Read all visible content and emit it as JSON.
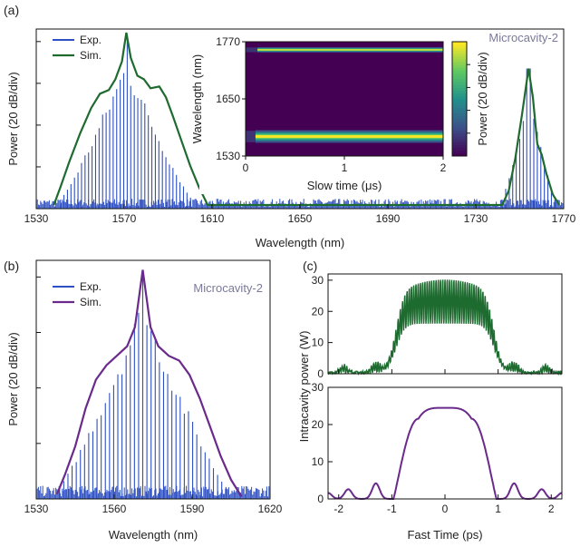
{
  "chart_data": [
    {
      "id": "a",
      "type": "line",
      "panel_label": "(a)",
      "note": "Microcavity-2",
      "xlabel": "Wavelength (nm)",
      "ylabel": "Power (20 dB/div)",
      "xlim": [
        1530,
        1770
      ],
      "xticks": [
        "1530",
        "1570",
        "1610",
        "1650",
        "1690",
        "1730",
        "1770"
      ],
      "legend": [
        "Exp.",
        "Sim."
      ],
      "colors": {
        "exp": "#2d4fc2",
        "sim": "#1e6b30"
      },
      "lobes": [
        {
          "center": 1571,
          "half_width": 30,
          "spacing": 1.6,
          "base": 0.05,
          "exp_peak": 0.85
        },
        {
          "center": 1754,
          "half_width": 12,
          "spacing": 1.6,
          "base": 0.05,
          "exp_peak": 0.68
        }
      ],
      "sim_points": [
        [
          1538,
          0.02
        ],
        [
          1541,
          0.12
        ],
        [
          1545,
          0.26
        ],
        [
          1550,
          0.42
        ],
        [
          1555,
          0.56
        ],
        [
          1559,
          0.64
        ],
        [
          1563,
          0.66
        ],
        [
          1566,
          0.72
        ],
        [
          1569,
          0.82
        ],
        [
          1571,
          0.98
        ],
        [
          1573,
          0.84
        ],
        [
          1576,
          0.74
        ],
        [
          1579,
          0.72
        ],
        [
          1582,
          0.67
        ],
        [
          1586,
          0.68
        ],
        [
          1589,
          0.62
        ],
        [
          1592,
          0.52
        ],
        [
          1596,
          0.38
        ],
        [
          1600,
          0.24
        ],
        [
          1604,
          0.12
        ],
        [
          1608,
          0.02
        ],
        [
          1742,
          0.02
        ],
        [
          1745,
          0.1
        ],
        [
          1748,
          0.28
        ],
        [
          1751,
          0.52
        ],
        [
          1754,
          0.78
        ],
        [
          1756,
          0.62
        ],
        [
          1758,
          0.36
        ],
        [
          1760,
          0.3
        ],
        [
          1762,
          0.2
        ],
        [
          1765,
          0.08
        ],
        [
          1768,
          0.02
        ]
      ]
    },
    {
      "id": "a-inset",
      "type": "heatmap",
      "xlabel": "Slow time (μs)",
      "ylabel": "Wavelength (nm)",
      "colorbar_label": "Power (20 dB/div)",
      "xlim": [
        0,
        2
      ],
      "ylim": [
        1530,
        1770
      ],
      "xticks": [
        "0",
        "1",
        "2"
      ],
      "yticks": [
        "1530",
        "1650",
        "1770"
      ],
      "bands": [
        {
          "center": 1571,
          "width": 12,
          "start": 0.1
        },
        {
          "center": 1753,
          "width": 5,
          "start": 0.12
        }
      ],
      "colormap": [
        "#440154",
        "#3b528b",
        "#21918c",
        "#5ec962",
        "#fde725"
      ]
    },
    {
      "id": "b",
      "type": "line",
      "panel_label": "(b)",
      "note": "Microcavity-2",
      "xlabel": "Wavelength (nm)",
      "ylabel": "Power (20 dB/div)",
      "xlim": [
        1530,
        1620
      ],
      "xticks": [
        "1530",
        "1560",
        "1590",
        "1620"
      ],
      "legend": [
        "Exp.",
        "Sim."
      ],
      "colors": {
        "exp": "#2d4fc2",
        "sim": "#6a2a8c"
      },
      "lobes": [
        {
          "center": 1571,
          "half_width": 32,
          "spacing": 1.6,
          "base": 0.05,
          "exp_peak": 0.85
        }
      ],
      "sim_points": [
        [
          1538,
          0.02
        ],
        [
          1541,
          0.1
        ],
        [
          1545,
          0.22
        ],
        [
          1549,
          0.38
        ],
        [
          1553,
          0.5
        ],
        [
          1557,
          0.56
        ],
        [
          1561,
          0.6
        ],
        [
          1565,
          0.64
        ],
        [
          1568,
          0.72
        ],
        [
          1571,
          0.96
        ],
        [
          1574,
          0.72
        ],
        [
          1577,
          0.64
        ],
        [
          1581,
          0.6
        ],
        [
          1585,
          0.58
        ],
        [
          1589,
          0.52
        ],
        [
          1593,
          0.42
        ],
        [
          1597,
          0.3
        ],
        [
          1601,
          0.18
        ],
        [
          1605,
          0.08
        ],
        [
          1609,
          0.01
        ]
      ]
    },
    {
      "id": "c-top",
      "type": "line",
      "panel_label": "(c)",
      "ylabel": "Intracavity power (W)",
      "xlim": [
        -2.2,
        2.2
      ],
      "ylim": [
        0,
        32
      ],
      "yticks": [
        "0",
        "10",
        "20",
        "30"
      ],
      "color": "#1e6b30",
      "pulse": {
        "center": 0,
        "half_width": 0.92,
        "upper": 30.5,
        "lower": 16,
        "ripple_period": 0.042
      }
    },
    {
      "id": "c-bottom",
      "type": "line",
      "xlabel": "Fast Time (ps)",
      "xlim": [
        -2.2,
        2.2
      ],
      "ylim": [
        0,
        30
      ],
      "xticks": [
        "-2",
        "-1",
        "0",
        "1",
        "2"
      ],
      "yticks": [
        "0",
        "10",
        "20",
        "30"
      ],
      "color": "#6a2a8c",
      "pulse": {
        "center": 0,
        "half_width": 0.92,
        "peak": 24.5
      }
    }
  ]
}
